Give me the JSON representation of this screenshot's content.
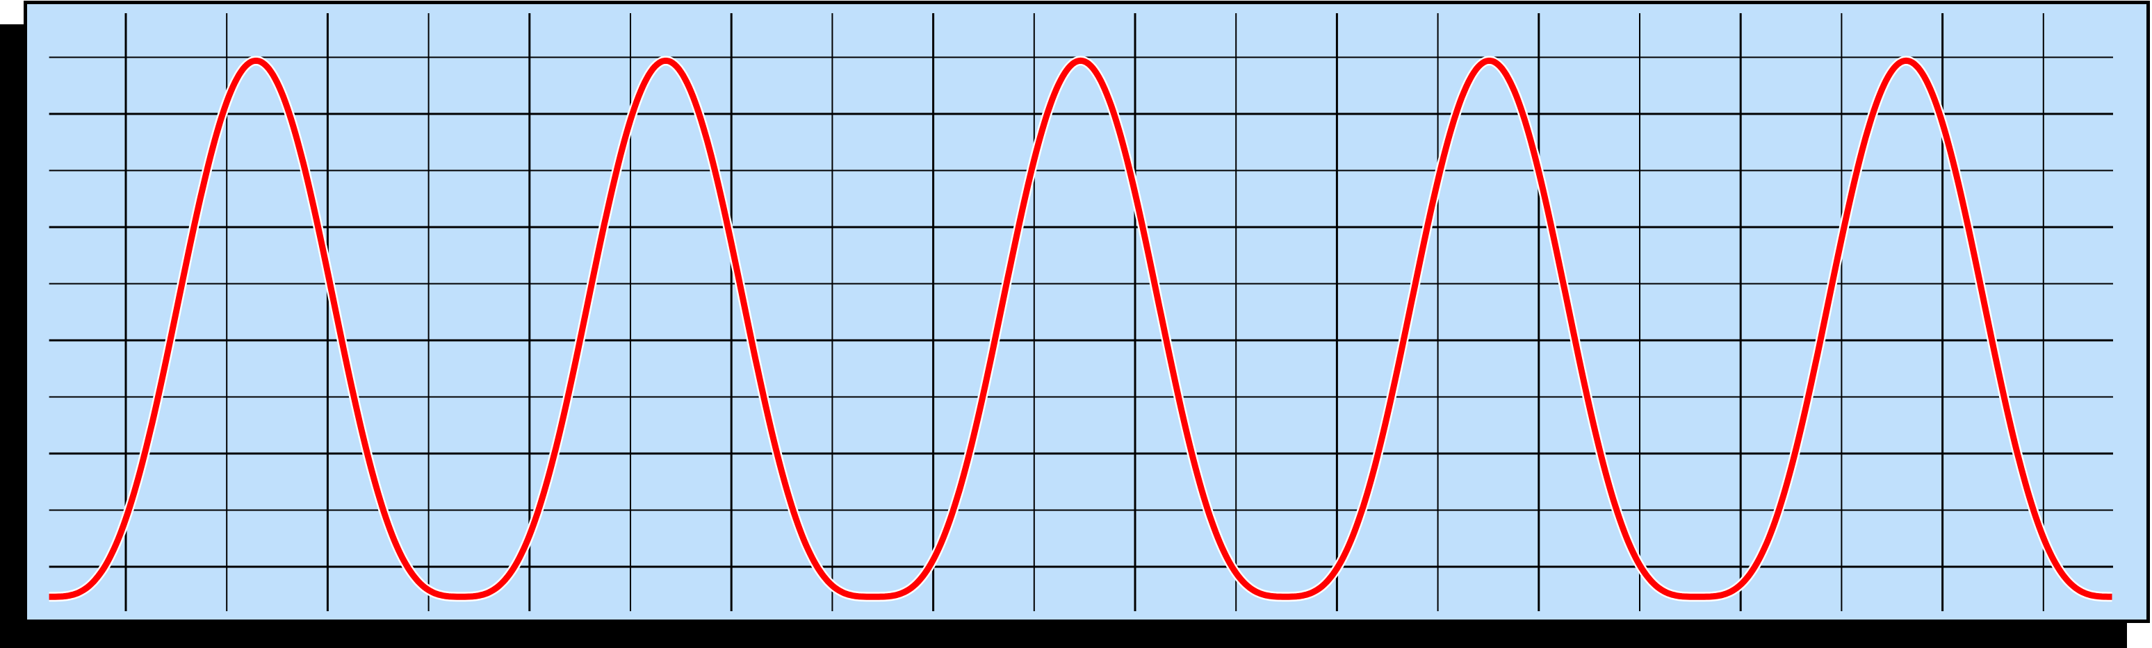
{
  "chart_data": {
    "type": "line",
    "title": "",
    "xlabel": "",
    "ylabel": "",
    "xlim": [
      -1,
      20
    ],
    "ylim": [
      -1,
      10
    ],
    "grid": true,
    "grid_x": [
      0,
      1,
      2,
      3,
      4,
      5,
      6,
      7,
      8,
      9,
      10,
      11,
      12,
      13,
      14,
      15,
      16,
      17,
      18,
      19
    ],
    "grid_y": [
      0,
      1,
      2,
      3,
      4,
      5,
      6,
      7,
      8,
      9
    ],
    "series": [
      {
        "x_start": -0.76,
        "x_end": 19.69,
        "peaks_x": [
          1.29,
          5.35,
          9.46,
          13.51,
          17.64
        ],
        "troughs_x": [
          -0.76,
          3.31,
          7.4,
          11.5,
          15.59,
          19.69
        ],
        "y_max": 8.94,
        "y_min": -0.53,
        "color": "#ff0000"
      }
    ]
  },
  "colors": {
    "background": "#c0e0fc",
    "grid": "#000000",
    "border": "#000000",
    "shadow": "#000000",
    "line": "#ff0000",
    "line_halo": "#ffffff"
  }
}
